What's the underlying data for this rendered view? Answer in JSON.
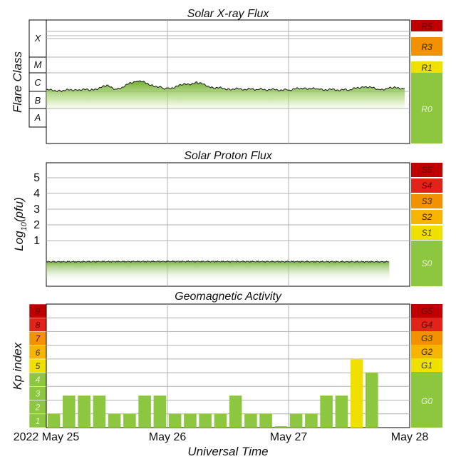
{
  "colors": {
    "green": "#8dc63f",
    "yellow": "#f0e000",
    "orange": "#f39200",
    "red": "#e2231a",
    "darkred": "#c00000",
    "grid": "#b0b0b0",
    "text": "#111111"
  },
  "x_axis": {
    "title": "Universal Time",
    "tick_labels": [
      "2022 May 25",
      "May 26",
      "May 27",
      "May 28"
    ]
  },
  "chart_data": [
    {
      "type": "area",
      "title": "Solar X-ray Flux",
      "ylabel": "Flare Class",
      "y_scale": "log",
      "class_labels": [
        "X",
        "M",
        "C",
        "B",
        "A"
      ],
      "radio_scale": [
        {
          "label": "R5",
          "color": "#c00000"
        },
        {
          "label": "R3",
          "color": "#f39200"
        },
        {
          "label": "R1",
          "color": "#f0e000"
        },
        {
          "label": "R0",
          "color": "#8dc63f"
        }
      ],
      "x_range": [
        "2022-05-25",
        "2022-05-28"
      ],
      "series_color": "#8dc63f",
      "series": [
        {
          "x": [
            "2022-05-25T00:00",
            "2022-05-25T03:00",
            "2022-05-25T06:00",
            "2022-05-25T09:00",
            "2022-05-25T12:00",
            "2022-05-25T14:00",
            "2022-05-25T18:00",
            "2022-05-25T21:00",
            "2022-05-25T23:00",
            "2022-05-26T00:00",
            "2022-05-26T03:00",
            "2022-05-26T06:00",
            "2022-05-26T09:00",
            "2022-05-26T12:00",
            "2022-05-26T18:00",
            "2022-05-27T00:00",
            "2022-05-27T03:00",
            "2022-05-27T06:00",
            "2022-05-27T12:00",
            "2022-05-27T15:00",
            "2022-05-27T18:00",
            "2022-05-27T21:00",
            "2022-05-27T23:00"
          ],
          "y": [
            1.2,
            1.1,
            1.3,
            1.2,
            2.1,
            1.3,
            4.5,
            2.3,
            1.6,
            1.4,
            2.4,
            3.2,
            1.7,
            1.4,
            1.3,
            1.2,
            1.6,
            1.3,
            1.2,
            2.0,
            1.3,
            1.6,
            1.5
          ],
          "y_units": "C-class multiplier (e.g. 1.2 = C1.2)"
        }
      ]
    },
    {
      "type": "area",
      "title": "Solar Proton Flux",
      "ylabel": "Log10(pfu)",
      "ylabel_main": "Log",
      "ylabel_sub": "10",
      "ylabel_rest": "(pfu)",
      "y_ticks": [
        "1",
        "2",
        "3",
        "4",
        "5"
      ],
      "radio_scale": [
        {
          "label": "S5",
          "color": "#c00000"
        },
        {
          "label": "S4",
          "color": "#e2231a"
        },
        {
          "label": "S3",
          "color": "#f39200"
        },
        {
          "label": "S2",
          "color": "#f7b500"
        },
        {
          "label": "S1",
          "color": "#f0e000"
        },
        {
          "label": "S0",
          "color": "#8dc63f"
        }
      ],
      "series_color": "#8dc63f",
      "series": [
        {
          "x": [
            "2022-05-25T00:00",
            "2022-05-26T00:00",
            "2022-05-27T00:00",
            "2022-05-27T20:00"
          ],
          "y": [
            -0.35,
            -0.33,
            -0.34,
            -0.35
          ]
        }
      ]
    },
    {
      "type": "bar",
      "title": "Geomagnetic Activity",
      "ylabel": "Kp index",
      "y_ticks": [
        "1",
        "2",
        "3",
        "4",
        "5",
        "6",
        "7",
        "8",
        "9"
      ],
      "ylim": [
        0,
        9
      ],
      "storm_scale": [
        {
          "label": "G5",
          "color": "#c00000"
        },
        {
          "label": "G4",
          "color": "#e2231a"
        },
        {
          "label": "G3",
          "color": "#f39200"
        },
        {
          "label": "G2",
          "color": "#f7b500"
        },
        {
          "label": "G1",
          "color": "#f0e000"
        },
        {
          "label": "G0",
          "color": "#8dc63f"
        }
      ],
      "kp_level_colors": [
        "#8dc63f",
        "#8dc63f",
        "#8dc63f",
        "#8dc63f",
        "#f0e000",
        "#f7b500",
        "#f39200",
        "#e2231a",
        "#c00000"
      ],
      "interval_hours": 3,
      "start": "2022-05-25T00:00",
      "values": [
        1.0,
        2.33,
        2.33,
        2.33,
        1.0,
        1.0,
        2.33,
        2.33,
        1.0,
        1.0,
        1.0,
        1.0,
        2.33,
        1.0,
        1.0,
        0.1,
        1.0,
        1.0,
        2.33,
        2.33,
        5.0,
        4.0
      ]
    }
  ]
}
